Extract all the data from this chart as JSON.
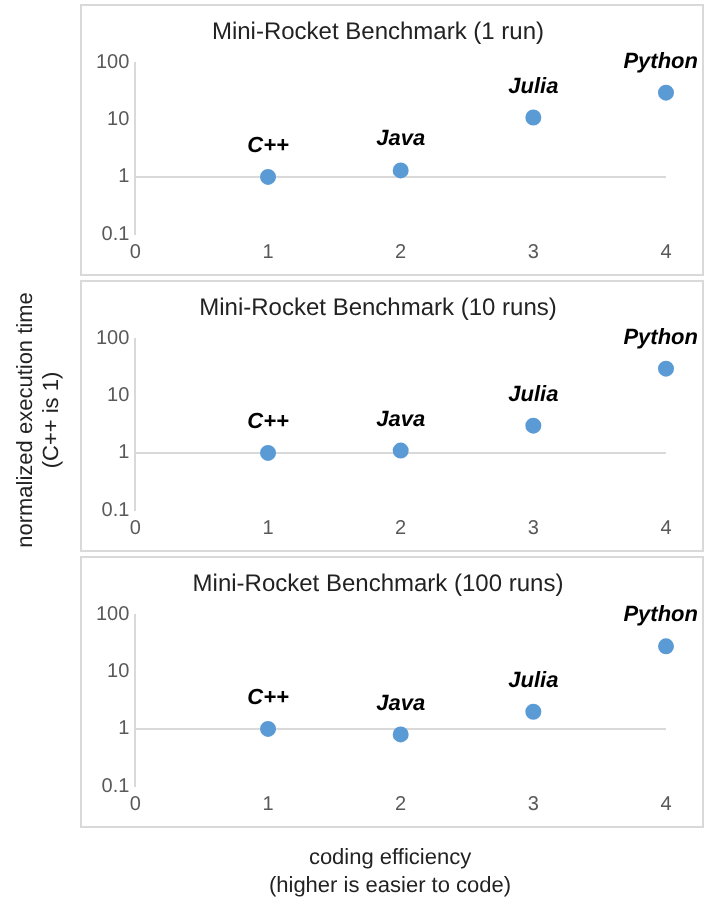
{
  "chart_data": [
    {
      "type": "scatter",
      "title": "Mini-Rocket Benchmark (1 run)",
      "log": "y",
      "marker": "circle",
      "grid": false,
      "legend": false,
      "series": [
        {
          "color": "#5b9bd5",
          "x": [
            1,
            2,
            3,
            4
          ],
          "values": [
            1,
            1.3,
            11,
            30
          ]
        }
      ],
      "xlim": [
        0,
        4
      ],
      "xticks": [
        0,
        1,
        2,
        3,
        4
      ],
      "ylim": [
        0.1,
        100
      ],
      "yticks": [
        0.1,
        1,
        10,
        100
      ],
      "ref_lines": [
        {
          "axis": "y",
          "value": 1,
          "color": "#d9d9d9"
        }
      ],
      "annotations": [
        {
          "text": "C++",
          "x": 1,
          "y": 1
        },
        {
          "text": "Java",
          "x": 2,
          "y": 1.3
        },
        {
          "text": "Julia",
          "x": 3,
          "y": 11
        },
        {
          "text": "Python",
          "x": 4,
          "y": 30
        }
      ]
    },
    {
      "type": "scatter",
      "title": "Mini-Rocket Benchmark (10 runs)",
      "ylabel": "normalized execution time\n(C++ is 1)",
      "log": "y",
      "marker": "circle",
      "grid": false,
      "legend": false,
      "series": [
        {
          "color": "#5b9bd5",
          "x": [
            1,
            2,
            3,
            4
          ],
          "values": [
            1,
            1.1,
            3,
            30
          ]
        }
      ],
      "xlim": [
        0,
        4
      ],
      "xticks": [
        0,
        1,
        2,
        3,
        4
      ],
      "ylim": [
        0.1,
        100
      ],
      "yticks": [
        0.1,
        1,
        10,
        100
      ],
      "ref_lines": [
        {
          "axis": "y",
          "value": 1,
          "color": "#d9d9d9"
        }
      ],
      "annotations": [
        {
          "text": "C++",
          "x": 1,
          "y": 1
        },
        {
          "text": "Java",
          "x": 2,
          "y": 1.1
        },
        {
          "text": "Julia",
          "x": 3,
          "y": 3
        },
        {
          "text": "Python",
          "x": 4,
          "y": 30
        }
      ]
    },
    {
      "type": "scatter",
      "title": "Mini-Rocket Benchmark (100 runs)",
      "xlabel": "coding efficiency\n(higher is easier to code)",
      "log": "y",
      "marker": "circle",
      "grid": false,
      "legend": false,
      "series": [
        {
          "color": "#5b9bd5",
          "x": [
            1,
            2,
            3,
            4
          ],
          "values": [
            1,
            0.8,
            2,
            28
          ]
        }
      ],
      "xlim": [
        0,
        4
      ],
      "xticks": [
        0,
        1,
        2,
        3,
        4
      ],
      "ylim": [
        0.1,
        100
      ],
      "yticks": [
        0.1,
        1,
        10,
        100
      ],
      "ref_lines": [
        {
          "axis": "y",
          "value": 1,
          "color": "#d9d9d9"
        }
      ],
      "annotations": [
        {
          "text": "C++",
          "x": 1,
          "y": 1
        },
        {
          "text": "Java",
          "x": 2,
          "y": 0.8
        },
        {
          "text": "Julia",
          "x": 3,
          "y": 2
        },
        {
          "text": "Python",
          "x": 4,
          "y": 28
        }
      ]
    }
  ]
}
